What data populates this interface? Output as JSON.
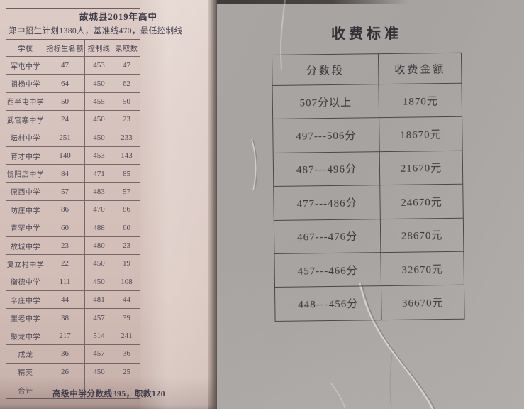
{
  "left_document": {
    "title": "故城县2019年高中",
    "info_line": "郑中招生计划1380人，基准线470，最低控制线",
    "footer": "高级中学分数线395，职教120",
    "table": {
      "headers": [
        "学校",
        "指标生名额",
        "控制线",
        "录取数"
      ],
      "rows": [
        [
          "军屯中学",
          "47",
          "453",
          "47"
        ],
        [
          "祖杨中学",
          "64",
          "450",
          "62"
        ],
        [
          "西半屯中学",
          "50",
          "455",
          "50"
        ],
        [
          "武官寨中学",
          "24",
          "450",
          "23"
        ],
        [
          "坛村中学",
          "251",
          "450",
          "233"
        ],
        [
          "育才中学",
          "140",
          "453",
          "143"
        ],
        [
          "饶阳店中学",
          "84",
          "471",
          "85"
        ],
        [
          "原西中学",
          "57",
          "483",
          "57"
        ],
        [
          "坊庄中学",
          "86",
          "470",
          "86"
        ],
        [
          "青罕中学",
          "60",
          "488",
          "60"
        ],
        [
          "故城中学",
          "23",
          "480",
          "23"
        ],
        [
          "复立村中学",
          "22",
          "450",
          "19"
        ],
        [
          "衡德中学",
          "111",
          "450",
          "108"
        ],
        [
          "辛庄中学",
          "44",
          "481",
          "44"
        ],
        [
          "里老中学",
          "38",
          "457",
          "39"
        ],
        [
          "聚龙中学",
          "217",
          "514",
          "241"
        ],
        [
          "成龙",
          "36",
          "457",
          "36"
        ],
        [
          "精英",
          "26",
          "450",
          "25"
        ],
        [
          "合计",
          "",
          "",
          ""
        ]
      ]
    }
  },
  "right_document": {
    "title": "收费标准",
    "table": {
      "headers": [
        "分数段",
        "收费金额"
      ],
      "rows": [
        [
          "507分以上",
          "1870元"
        ],
        [
          "497---506分",
          "18670元"
        ],
        [
          "487---496分",
          "21670元"
        ],
        [
          "477---486分",
          "24670元"
        ],
        [
          "467---476分",
          "28670元"
        ],
        [
          "457---466分",
          "32670元"
        ],
        [
          "448---456分",
          "36670元"
        ]
      ]
    }
  },
  "colors": {
    "left_paper": "#d6c3bd",
    "right_paper": "#a9a5a3",
    "left_line": "#615056",
    "right_line": "#4b4745",
    "ink": "#37363a"
  }
}
